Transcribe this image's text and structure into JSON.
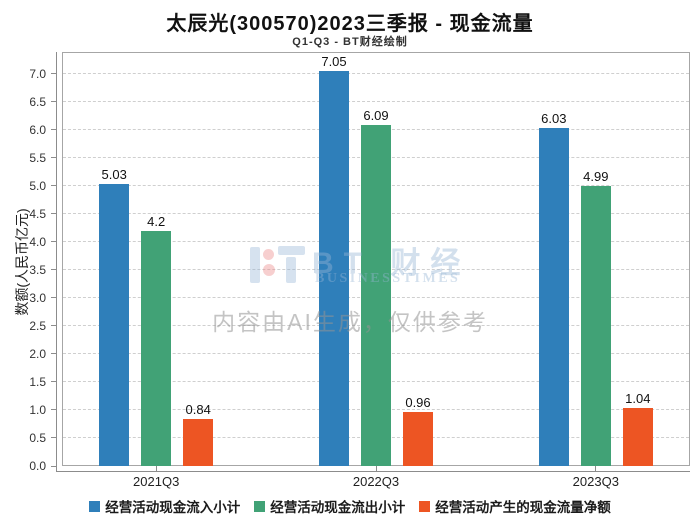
{
  "header": {
    "title": "太辰光(300570)2023三季报 - 现金流量",
    "subtitle": "Q1-Q3 - BT财经绘制"
  },
  "watermark": {
    "logo": "bt-businesstimes-logo",
    "brand_cn": "BT 财经",
    "brand_en": "BUSINESSTIMES",
    "disclaimer": "内容由AI生成，仅供参考"
  },
  "chart_data": {
    "type": "bar",
    "title": "太辰光(300570)2023三季报 - 现金流量",
    "subtitle": "Q1-Q3 - BT财经绘制",
    "categories": [
      "2021Q3",
      "2022Q3",
      "2023Q3"
    ],
    "series": [
      {
        "name": "经营活动现金流入小计",
        "color": "#2f7fba",
        "values": [
          5.03,
          7.05,
          6.03
        ]
      },
      {
        "name": "经营活动现金流出小计",
        "color": "#41a276",
        "values": [
          4.2,
          6.09,
          4.99
        ]
      },
      {
        "name": "经营活动产生的现金流量净额",
        "color": "#ed5523",
        "values": [
          0.84,
          0.96,
          1.04
        ]
      }
    ],
    "xlabel": "",
    "ylabel": "数额(人民币亿元)",
    "ylim": [
      0,
      7.385
    ],
    "ytick_step": 0.5,
    "ytick_max": 7.0,
    "grid": true,
    "gridline_style": "dashed",
    "legend_position": "bottom",
    "bar_value_labels": true
  },
  "colors": {
    "series_inflow": "#2f7fba",
    "series_outflow": "#41a276",
    "series_net": "#ed5523",
    "gridline": "#cfcfcf",
    "axis": "#8c8c8c",
    "plot_border": "#a6a6a6",
    "tick_label": "#333333",
    "value_label": "#111111",
    "legend_text": "#1a1a1a",
    "watermark_blue": "#96b4d6",
    "watermark_gray": "#949494",
    "watermark_dot": "#ec8c8c",
    "background": "#ffffff"
  }
}
